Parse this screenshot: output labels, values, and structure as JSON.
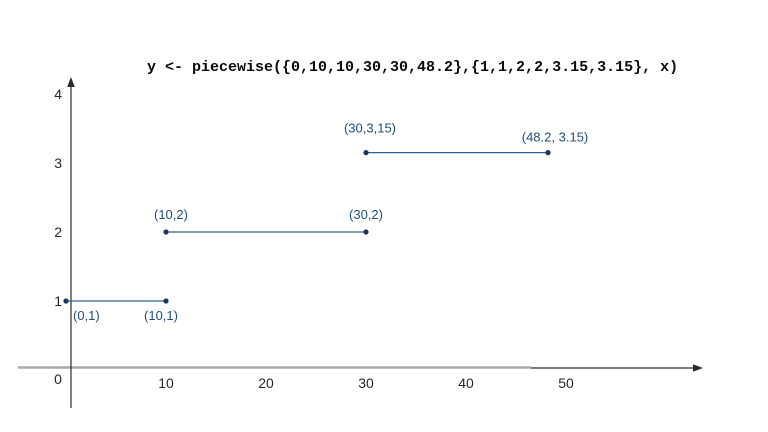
{
  "chart_data": {
    "type": "line",
    "title": "y <- piecewise({0,10,10,30,30,48.2},{1,1,2,2,3.15,3.15}, x)",
    "xlabel": "",
    "ylabel": "",
    "xlim": [
      0,
      63
    ],
    "ylim": [
      0,
      4.3
    ],
    "grid": false,
    "legend": "none",
    "x_ticks": [
      10,
      20,
      30,
      40,
      50
    ],
    "y_ticks": [
      1,
      2,
      3,
      4
    ],
    "origin_label": "0",
    "series": [
      {
        "name": "segment-1",
        "points": [
          {
            "x": 0,
            "y": 1
          },
          {
            "x": 10,
            "y": 1
          }
        ]
      },
      {
        "name": "segment-2",
        "points": [
          {
            "x": 10,
            "y": 2
          },
          {
            "x": 30,
            "y": 2
          }
        ]
      },
      {
        "name": "segment-3",
        "points": [
          {
            "x": 30,
            "y": 3.15
          },
          {
            "x": 48.2,
            "y": 3.15
          }
        ]
      }
    ],
    "point_labels": [
      {
        "x": 0,
        "y": 1,
        "text": "(0,1)",
        "placement": "below-right"
      },
      {
        "x": 10,
        "y": 1,
        "text": "(10,1)",
        "placement": "below"
      },
      {
        "x": 10,
        "y": 2,
        "text": "(10,2)",
        "placement": "above-left"
      },
      {
        "x": 30,
        "y": 2,
        "text": "(30,2)",
        "placement": "above"
      },
      {
        "x": 30,
        "y": 3.15,
        "text": "(30,3,15)",
        "placement": "above-high"
      },
      {
        "x": 48.2,
        "y": 3.15,
        "text": "(48.2, 3.15)",
        "placement": "above-right"
      }
    ],
    "colors": {
      "segment_line": "#35608d",
      "point": "#17375e",
      "label": "#1f4e79",
      "tick": "#262626",
      "axis": "#2b2b2b",
      "axis_gray": "#a9a9a9",
      "background": "#ffffff"
    }
  }
}
